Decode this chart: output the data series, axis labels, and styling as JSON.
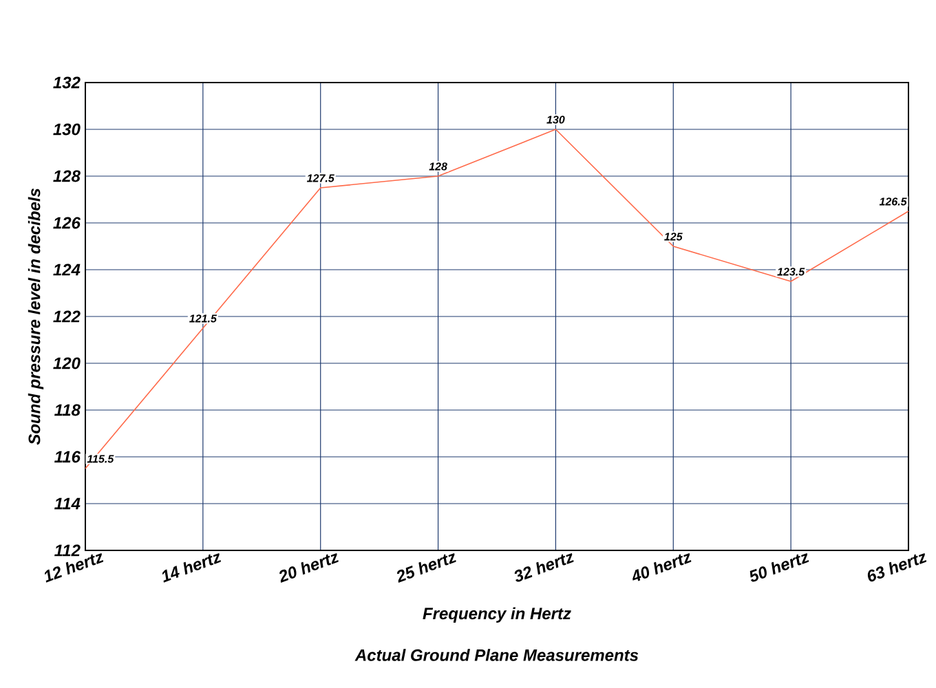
{
  "chart_data": {
    "type": "line",
    "categories": [
      "12 hertz",
      "14 hertz",
      "20 hertz",
      "25 hertz",
      "32 hertz",
      "40 hertz",
      "50 hertz",
      "63 hertz"
    ],
    "series": [
      {
        "color": "#ff6a4a",
        "values": [
          115.5,
          121.5,
          127.5,
          128,
          130,
          125,
          123.5,
          126.5
        ]
      }
    ],
    "xlabel": "Frequency in Hertz",
    "ylabel": "Sound pressure level in decibels",
    "annotations": [
      "Actual Ground Plane Measurements"
    ],
    "ylim": [
      112,
      132
    ],
    "yticks": [
      112,
      114,
      116,
      118,
      120,
      122,
      124,
      126,
      128,
      130,
      132
    ],
    "grid": true,
    "data_labels": true,
    "marker": "none",
    "line_style": "solid"
  }
}
